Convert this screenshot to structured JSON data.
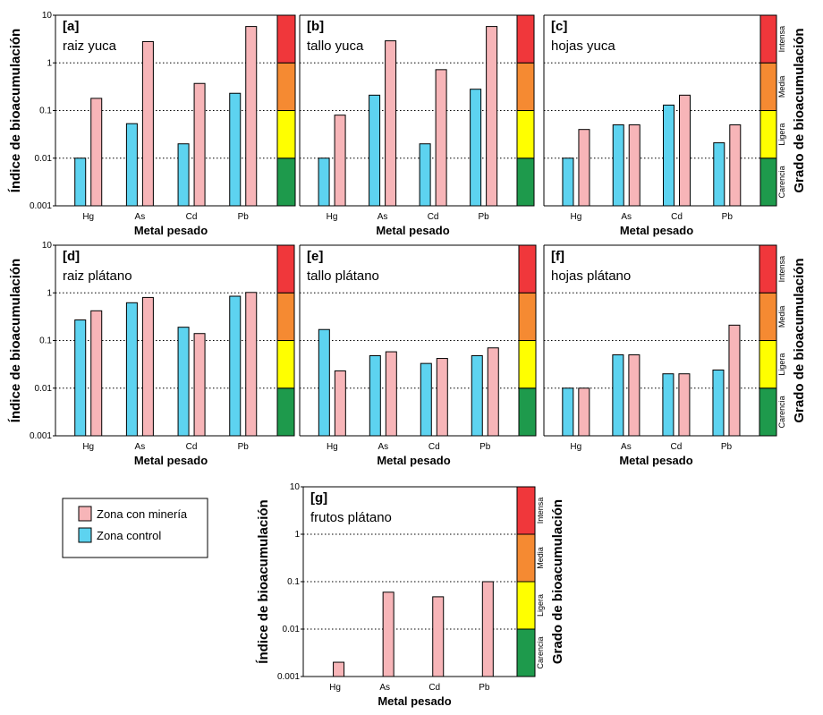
{
  "chart_data": [
    {
      "type": "bar",
      "letter": "[a]",
      "title": "raiz yuca",
      "categories": [
        "Hg",
        "As",
        "Cd",
        "Pb"
      ],
      "series": [
        {
          "name": "Zona control",
          "values": [
            0.01,
            0.053,
            0.02,
            0.23
          ]
        },
        {
          "name": "Zona con minería",
          "values": [
            0.18,
            2.8,
            0.37,
            5.8
          ]
        }
      ],
      "xlabel": "Metal pesado",
      "ylabel": "Índice de bioacumulación",
      "yscale": "log",
      "ylim": [
        0.001,
        10
      ],
      "yticks": [
        "0.001",
        "0.01",
        "0.1",
        "1",
        "10"
      ],
      "show_yticks": true,
      "show_ylabel": true,
      "show_grade_labels": false
    },
    {
      "type": "bar",
      "letter": "[b]",
      "title": "tallo yuca",
      "categories": [
        "Hg",
        "As",
        "Cd",
        "Pb"
      ],
      "series": [
        {
          "name": "Zona control",
          "values": [
            0.01,
            0.21,
            0.02,
            0.28
          ]
        },
        {
          "name": "Zona con minería",
          "values": [
            0.08,
            2.9,
            0.72,
            5.8
          ]
        }
      ],
      "xlabel": "Metal pesado",
      "ylabel": "",
      "yscale": "log",
      "ylim": [
        0.001,
        10
      ],
      "show_yticks": false,
      "show_ylabel": false,
      "show_grade_labels": false
    },
    {
      "type": "bar",
      "letter": "[c]",
      "title": "hojas yuca",
      "categories": [
        "Hg",
        "As",
        "Cd",
        "Pb"
      ],
      "series": [
        {
          "name": "Zona control",
          "values": [
            0.01,
            0.05,
            0.13,
            0.021
          ]
        },
        {
          "name": "Zona con minería",
          "values": [
            0.04,
            0.05,
            0.21,
            0.05
          ]
        }
      ],
      "xlabel": "Metal pesado",
      "ylabel": "",
      "yscale": "log",
      "ylim": [
        0.001,
        10
      ],
      "show_yticks": false,
      "show_ylabel": false,
      "show_grade_labels": true,
      "grade_title": "Grado de bioacumulación"
    },
    {
      "type": "bar",
      "letter": "[d]",
      "title": "raiz plátano",
      "categories": [
        "Hg",
        "As",
        "Cd",
        "Pb"
      ],
      "series": [
        {
          "name": "Zona control",
          "values": [
            0.27,
            0.62,
            0.19,
            0.85
          ]
        },
        {
          "name": "Zona con minería",
          "values": [
            0.42,
            0.8,
            0.14,
            1.02
          ]
        }
      ],
      "xlabel": "Metal pesado",
      "ylabel": "Índice de bioacumulación",
      "yscale": "log",
      "ylim": [
        0.001,
        10
      ],
      "yticks": [
        "0.001",
        "0.01",
        "0.1",
        "1",
        "10"
      ],
      "show_yticks": true,
      "show_ylabel": true,
      "show_grade_labels": false
    },
    {
      "type": "bar",
      "letter": "[e]",
      "title": "tallo plátano",
      "categories": [
        "Hg",
        "As",
        "Cd",
        "Pb"
      ],
      "series": [
        {
          "name": "Zona control",
          "values": [
            0.17,
            0.048,
            0.033,
            0.048
          ]
        },
        {
          "name": "Zona con minería",
          "values": [
            0.023,
            0.058,
            0.042,
            0.07
          ]
        }
      ],
      "xlabel": "Metal pesado",
      "ylabel": "",
      "yscale": "log",
      "ylim": [
        0.001,
        10
      ],
      "show_yticks": false,
      "show_ylabel": false,
      "show_grade_labels": false
    },
    {
      "type": "bar",
      "letter": "[f]",
      "title": "hojas plátano",
      "categories": [
        "Hg",
        "As",
        "Cd",
        "Pb"
      ],
      "series": [
        {
          "name": "Zona control",
          "values": [
            0.01,
            0.05,
            0.02,
            0.024
          ]
        },
        {
          "name": "Zona con minería",
          "values": [
            0.01,
            0.05,
            0.02,
            0.21
          ]
        }
      ],
      "xlabel": "Metal pesado",
      "ylabel": "",
      "yscale": "log",
      "ylim": [
        0.001,
        10
      ],
      "show_yticks": false,
      "show_ylabel": false,
      "show_grade_labels": true,
      "grade_title": "Grado de bioacumulación"
    },
    {
      "type": "bar",
      "letter": "[g]",
      "title": "frutos plátano",
      "categories": [
        "Hg",
        "As",
        "Cd",
        "Pb"
      ],
      "series": [
        {
          "name": "Zona con minería",
          "values": [
            0.002,
            0.06,
            0.048,
            0.1
          ]
        }
      ],
      "xlabel": "Metal pesado",
      "ylabel": "Índice de bioacumulación",
      "yscale": "log",
      "ylim": [
        0.001,
        10
      ],
      "yticks": [
        "0.001",
        "0.01",
        "0.1",
        "1",
        "10"
      ],
      "show_yticks": true,
      "show_ylabel": true,
      "show_grade_labels": true,
      "grade_title": "Grado de bioacumulación"
    }
  ],
  "grades": [
    {
      "label": "Carencia",
      "range": [
        0.001,
        0.01
      ],
      "color": "#1e9a4c"
    },
    {
      "label": "Ligera",
      "range": [
        0.01,
        0.1
      ],
      "color": "#ffff00"
    },
    {
      "label": "Media",
      "range": [
        0.1,
        1
      ],
      "color": "#f58a32"
    },
    {
      "label": "Intensa",
      "range": [
        1,
        10
      ],
      "color": "#f0373b"
    }
  ],
  "legend": {
    "items": [
      {
        "label": "Zona con minería",
        "color": "#f7b5b8"
      },
      {
        "label": "Zona control",
        "color": "#5dd3f0"
      }
    ]
  },
  "colors": {
    "mining": "#f7b5b8",
    "control": "#5dd3f0",
    "gridline": "#000000"
  }
}
